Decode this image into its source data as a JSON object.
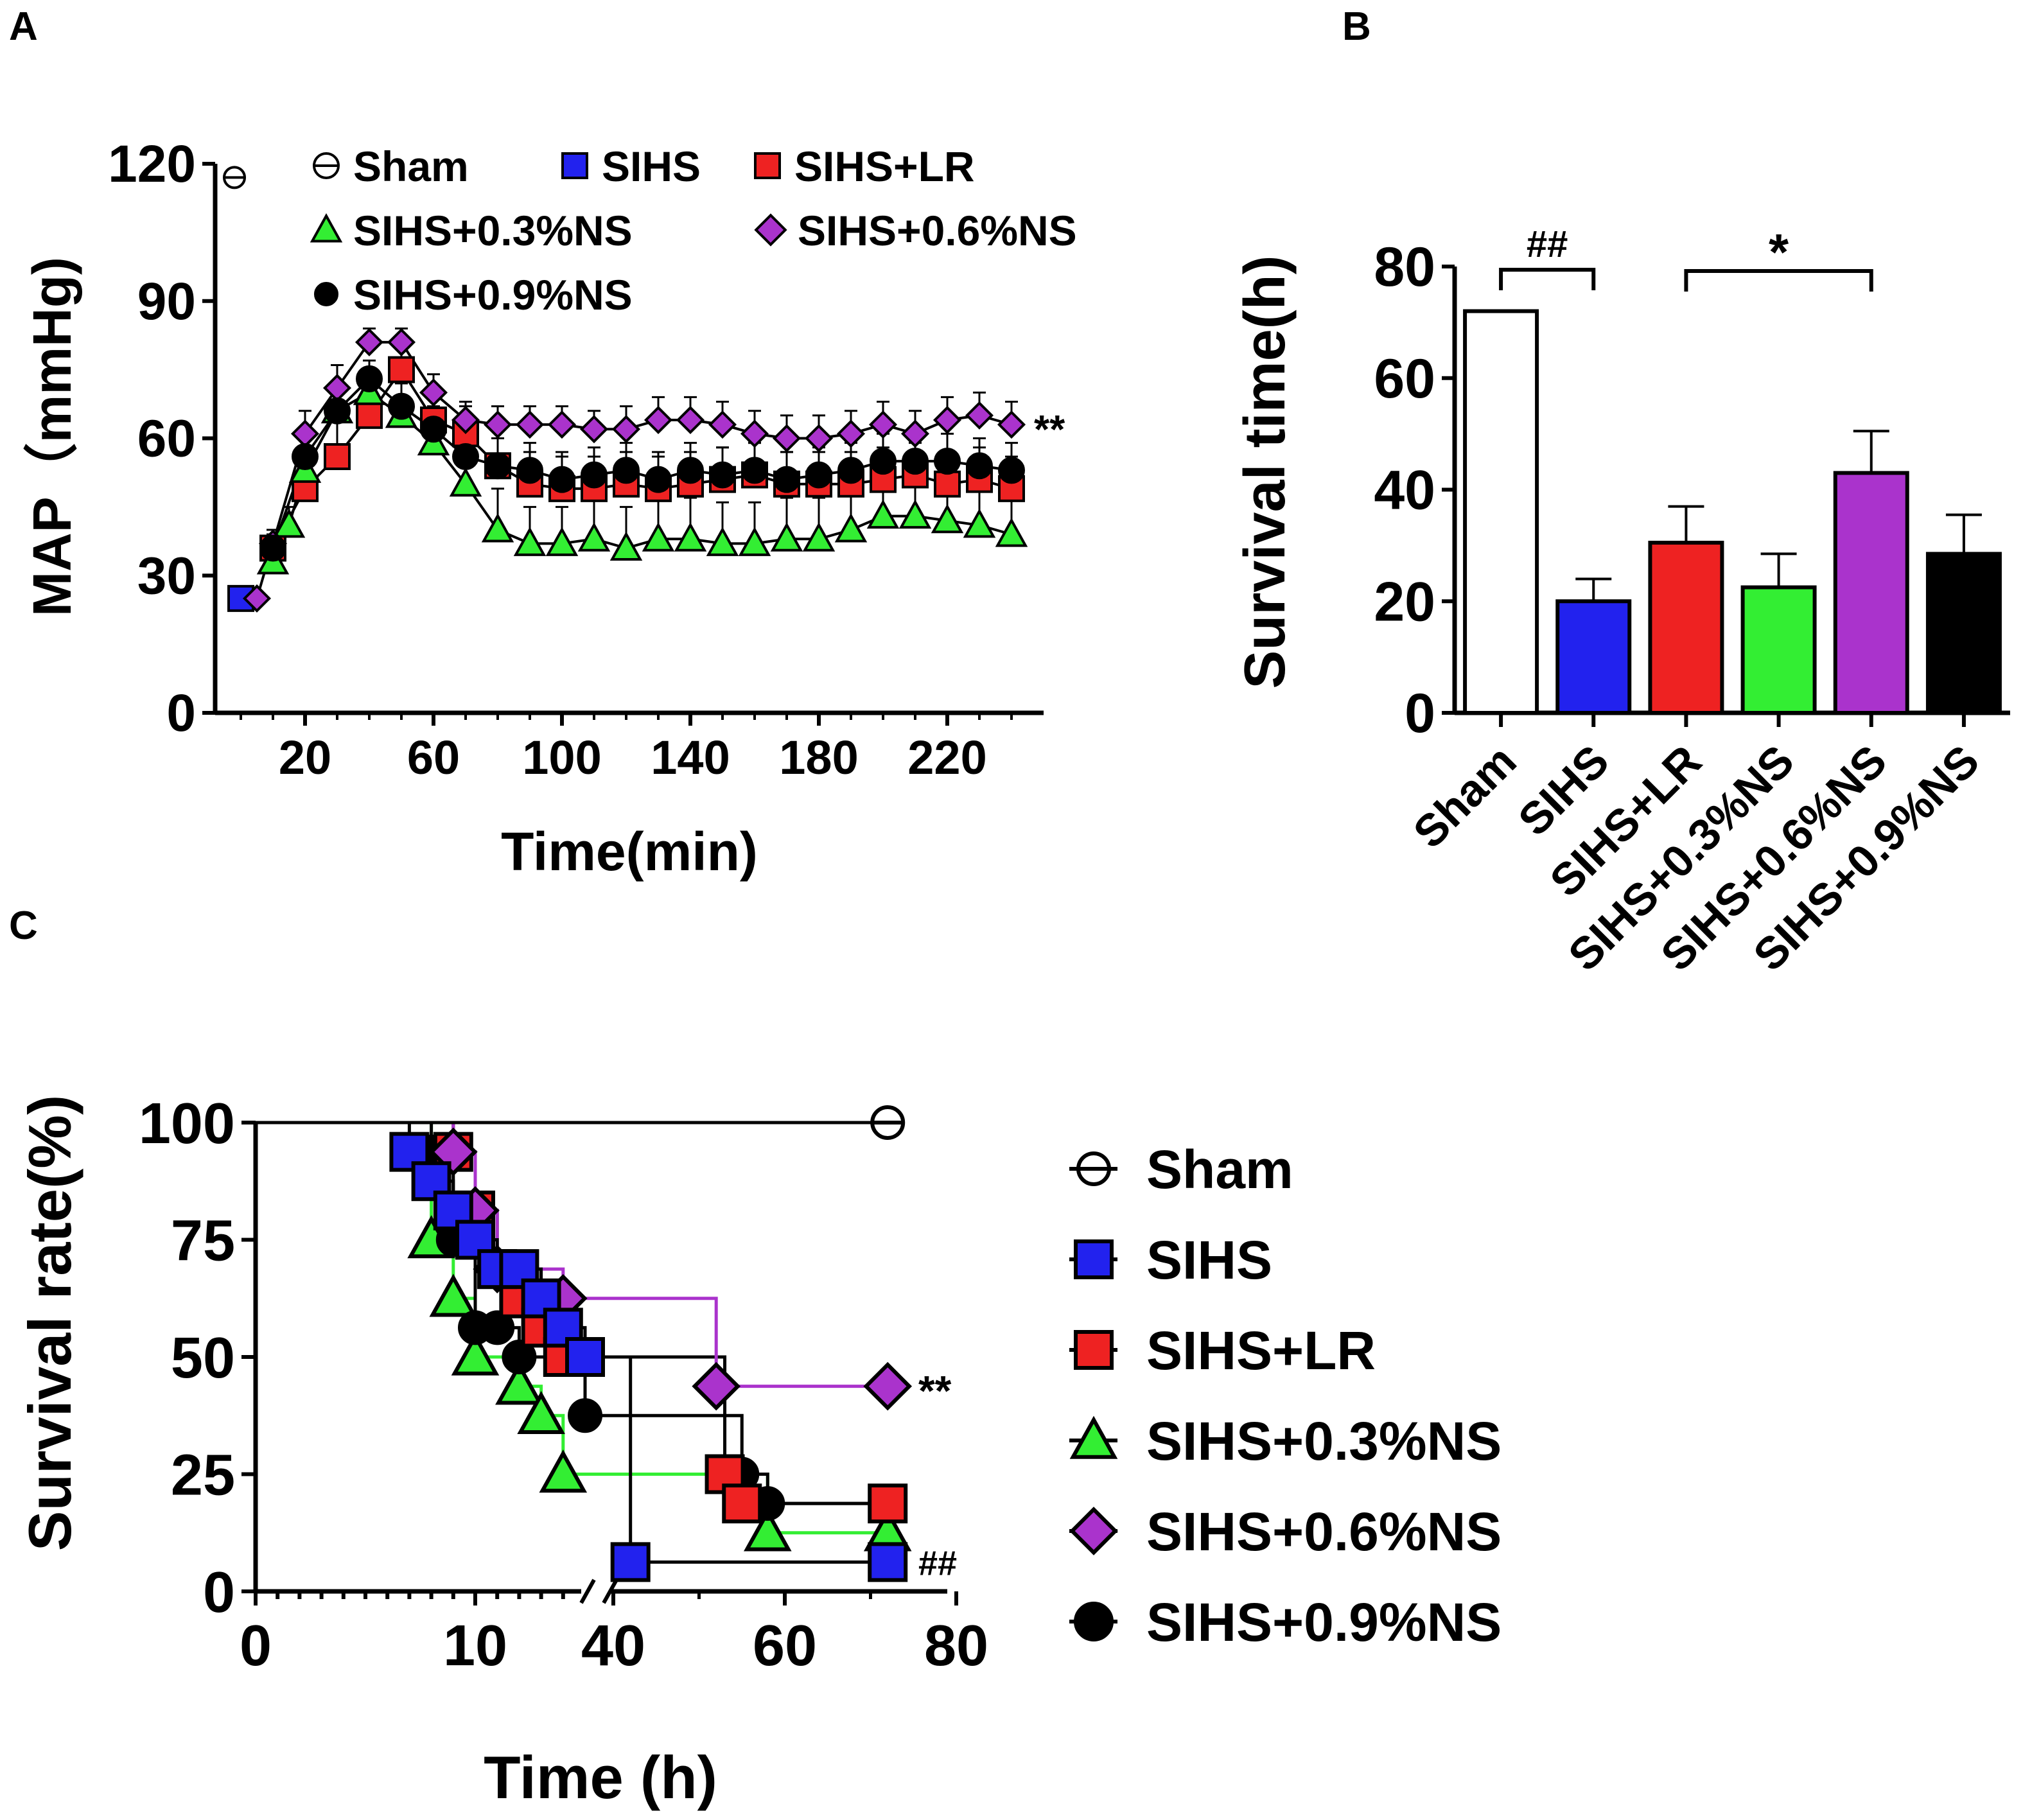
{
  "colors": {
    "sham": "#ffffff",
    "sihs": "#2222ee",
    "lr": "#ee2222",
    "ns03": "#33ee33",
    "ns06": "#aa33cc",
    "ns09": "#000000",
    "axis": "#000000"
  },
  "chart_data": [
    {
      "panel": "A",
      "type": "line",
      "xlabel": "Time(min)",
      "ylabel": "MAP（mmHg)",
      "xticks": [
        20,
        60,
        100,
        140,
        180,
        220
      ],
      "yticks": [
        0,
        30,
        60,
        90,
        120
      ],
      "xlim": [
        -8,
        250
      ],
      "ylim": [
        0,
        120
      ],
      "significance": "**",
      "series": [
        {
          "name": "Sham",
          "key": "sham",
          "marker": "circle-line",
          "x": [
            -2
          ],
          "values": [
            117
          ],
          "err": [
            0
          ]
        },
        {
          "name": "SIHS",
          "key": "sihs",
          "marker": "square",
          "x": [
            0
          ],
          "values": [
            25
          ],
          "err": [
            0
          ]
        },
        {
          "name": "SIHS+LR",
          "key": "lr",
          "marker": "square",
          "x": [
            10,
            20,
            30,
            40,
            50,
            60,
            70,
            80,
            90,
            100,
            110,
            120,
            130,
            140,
            150,
            160,
            170,
            180,
            190,
            200,
            210,
            220,
            230,
            240
          ],
          "values": [
            36,
            49,
            56,
            65,
            75,
            64,
            61,
            54,
            50,
            49,
            49,
            50,
            49,
            50,
            51,
            52,
            50,
            50,
            50,
            51,
            52,
            50,
            51,
            49
          ],
          "err": [
            3,
            8,
            8,
            4,
            6,
            5,
            6,
            6,
            7,
            7,
            7,
            7,
            7,
            7,
            7,
            7,
            7,
            7,
            7,
            7,
            7,
            7,
            7,
            7
          ]
        },
        {
          "name": "SIHS+0.3%NS",
          "key": "ns03",
          "marker": "triangle",
          "x": [
            10,
            15,
            20,
            30,
            40,
            50,
            60,
            70,
            80,
            90,
            100,
            110,
            120,
            130,
            140,
            150,
            160,
            170,
            180,
            190,
            200,
            210,
            220,
            230,
            240
          ],
          "values": [
            33,
            41,
            53,
            66,
            70,
            65,
            59,
            50,
            40,
            37,
            37,
            38,
            36,
            38,
            38,
            37,
            37,
            38,
            38,
            40,
            43,
            43,
            42,
            41,
            39
          ],
          "err": [
            3,
            4,
            5,
            5,
            4,
            4,
            5,
            6,
            9,
            8,
            8,
            9,
            9,
            9,
            9,
            9,
            9,
            9,
            9,
            9,
            9,
            9,
            9,
            9,
            9
          ]
        },
        {
          "name": "SIHS+0.6%NS",
          "key": "ns06",
          "marker": "diamond",
          "x": [
            5,
            10,
            20,
            30,
            40,
            50,
            60,
            70,
            80,
            90,
            100,
            110,
            120,
            130,
            140,
            150,
            160,
            170,
            180,
            190,
            200,
            210,
            220,
            230,
            240
          ],
          "values": [
            25,
            37,
            61,
            71,
            81,
            81,
            70,
            64,
            63,
            63,
            63,
            62,
            62,
            64,
            64,
            63,
            61,
            60,
            60,
            61,
            63,
            61,
            64,
            65,
            63
          ],
          "err": [
            0,
            3,
            5,
            5,
            3,
            3,
            4,
            4,
            4,
            4,
            4,
            4,
            5,
            5,
            5,
            5,
            5,
            5,
            5,
            5,
            5,
            5,
            5,
            5,
            5
          ]
        },
        {
          "name": "SIHS+0.9%NS",
          "key": "ns09",
          "marker": "circle",
          "x": [
            10,
            20,
            30,
            40,
            50,
            60,
            70,
            80,
            90,
            100,
            110,
            120,
            130,
            140,
            150,
            160,
            170,
            180,
            190,
            200,
            210,
            220,
            230,
            240
          ],
          "values": [
            36,
            56,
            66,
            73,
            67,
            62,
            56,
            54,
            53,
            51,
            52,
            53,
            51,
            53,
            52,
            53,
            51,
            52,
            53,
            55,
            55,
            55,
            54,
            53
          ],
          "err": [
            3,
            6,
            6,
            4,
            5,
            5,
            6,
            6,
            6,
            6,
            6,
            6,
            6,
            6,
            6,
            6,
            6,
            6,
            6,
            6,
            6,
            6,
            6,
            6
          ]
        }
      ]
    },
    {
      "panel": "B",
      "type": "bar",
      "ylabel": "Survival time(h)",
      "yticks": [
        0,
        20,
        40,
        60,
        80
      ],
      "ylim": [
        0,
        80
      ],
      "categories": [
        "Sham",
        "SIHS",
        "SIHS+LR",
        "SIHS+0.3%NS",
        "SIHS+0.6%NS",
        "SIHS+0.9%NS"
      ],
      "keys": [
        "sham",
        "sihs",
        "lr",
        "ns03",
        "ns06",
        "ns09"
      ],
      "values": [
        72,
        20,
        30.5,
        22.5,
        43,
        28.5
      ],
      "errors": [
        0,
        4,
        6.5,
        6,
        7.5,
        7
      ],
      "significance": [
        {
          "from": 0,
          "to": 1,
          "label": "##"
        },
        {
          "from": 2,
          "to": 4,
          "label": "*"
        }
      ]
    },
    {
      "panel": "C",
      "type": "line",
      "subtype": "kaplan-meier",
      "xlabel": "Time (h)",
      "ylabel": "Survival rate(%)",
      "xticks": [
        0,
        10,
        40,
        60,
        80
      ],
      "yticks": [
        0,
        25,
        50,
        75,
        100
      ],
      "ylim": [
        0,
        100
      ],
      "annotations": [
        {
          "series": "ns06",
          "label": "**"
        },
        {
          "series": "sihs",
          "label": "##"
        }
      ],
      "series": [
        {
          "name": "Sham",
          "key": "sham",
          "marker": "circle-line",
          "x": [
            0,
            72
          ],
          "values": [
            100,
            100
          ],
          "censored_x": [
            72
          ],
          "censored_y": [
            100
          ]
        },
        {
          "name": "SIHS",
          "key": "sihs",
          "marker": "square",
          "x": [
            0,
            7,
            8,
            9,
            10,
            11,
            12,
            13,
            14,
            15,
            42,
            72
          ],
          "values": [
            100,
            93.75,
            87.5,
            81.25,
            75,
            68.75,
            68.75,
            62.5,
            56.25,
            50,
            6.25,
            6.25
          ],
          "censored_x": [
            72
          ],
          "censored_y": [
            6.25
          ]
        },
        {
          "name": "SIHS+LR",
          "key": "lr",
          "marker": "square",
          "x": [
            0,
            9,
            10,
            11,
            12,
            13,
            14,
            53,
            55,
            72
          ],
          "values": [
            100,
            93.75,
            81.25,
            68.75,
            62.5,
            56.25,
            50,
            25,
            18.75,
            18.75
          ],
          "censored_x": [
            72
          ],
          "censored_y": [
            18.75
          ]
        },
        {
          "name": "SIHS+0.3%NS",
          "key": "ns03",
          "marker": "triangle",
          "x": [
            0,
            8,
            9,
            10,
            12,
            13,
            14,
            58,
            72
          ],
          "values": [
            100,
            75,
            62.5,
            50,
            43.75,
            37.5,
            25,
            12.5,
            12.5
          ],
          "censored_x": [
            72
          ],
          "censored_y": [
            12.5
          ]
        },
        {
          "name": "SIHS+0.6%NS",
          "key": "ns06",
          "marker": "diamond",
          "x": [
            0,
            9,
            10,
            11,
            14,
            52,
            72
          ],
          "values": [
            100,
            93.75,
            81.25,
            68.75,
            62.5,
            43.75,
            43.75
          ],
          "censored_x": [
            72
          ],
          "censored_y": [
            43.75
          ]
        },
        {
          "name": "SIHS+0.9%NS",
          "key": "ns09",
          "marker": "circle",
          "x": [
            0,
            8,
            9,
            10,
            11,
            12,
            15,
            55,
            58,
            72
          ],
          "values": [
            100,
            93.75,
            75,
            56.25,
            56.25,
            50,
            37.5,
            25,
            18.75,
            18.75
          ],
          "censored_x": [
            72
          ],
          "censored_y": [
            18.75
          ]
        }
      ]
    }
  ]
}
